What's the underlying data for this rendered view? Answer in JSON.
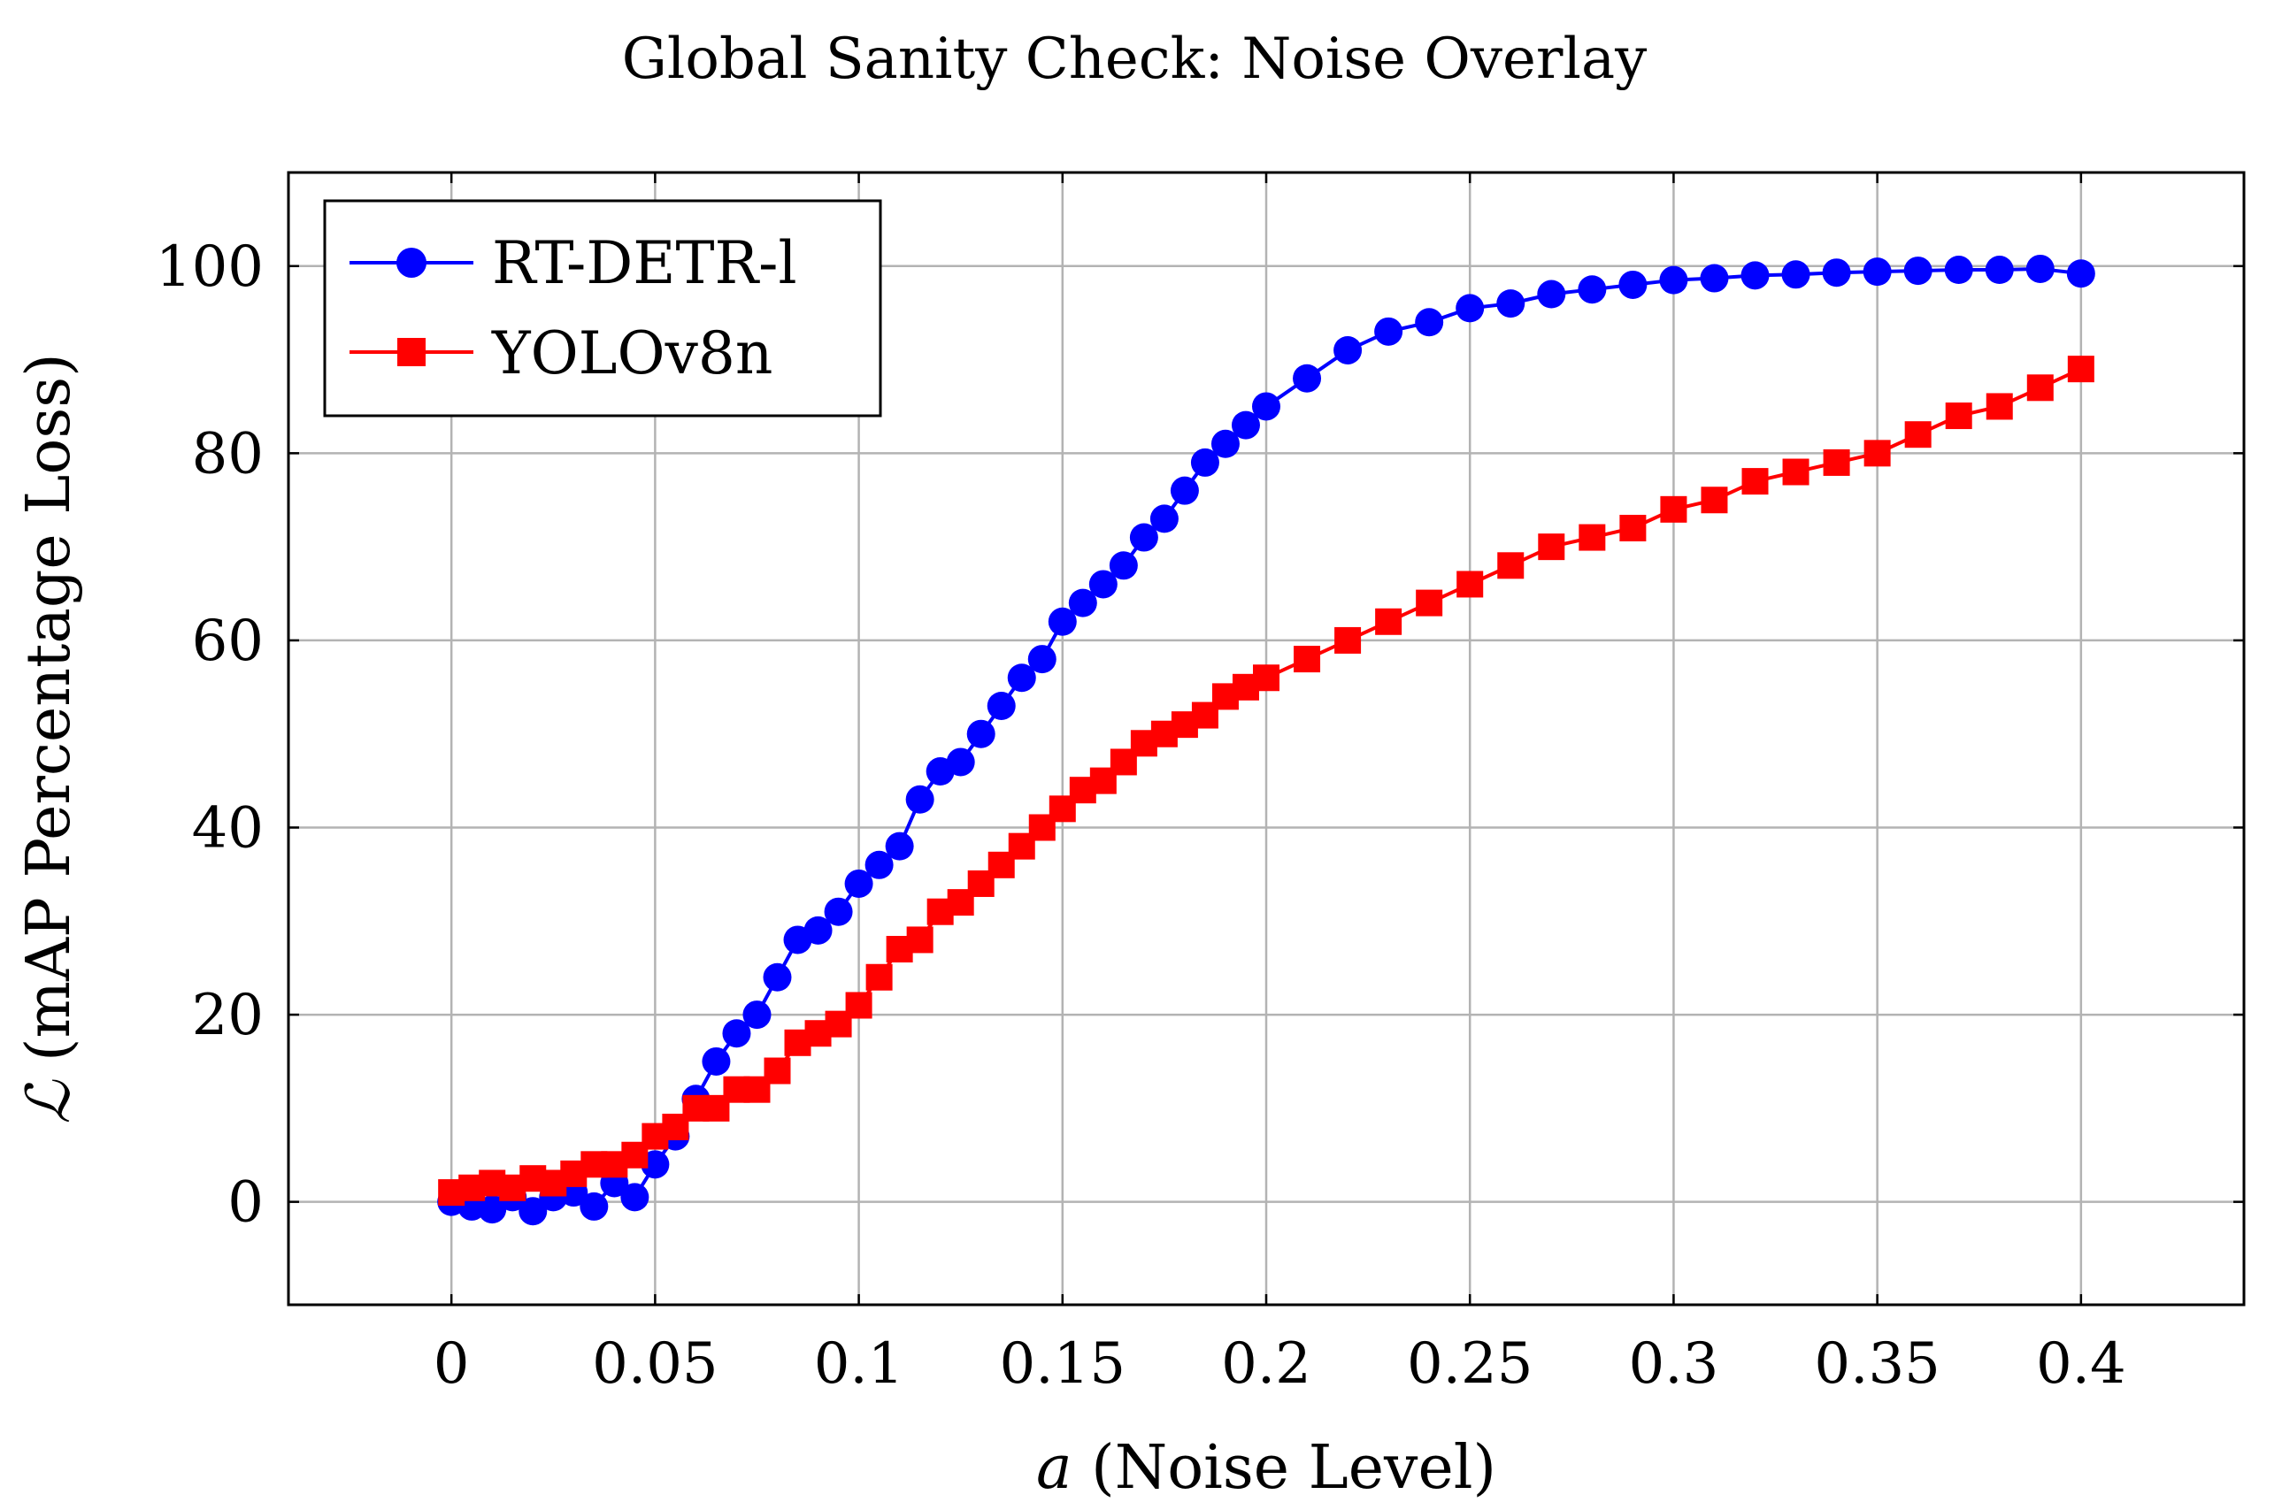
{
  "chart_data": {
    "type": "line",
    "title": "Global Sanity Check: Noise Overlay",
    "xlabel_var": "a",
    "xlabel_rest": " (Noise Level)",
    "ylabel_var": "ℒ",
    "ylabel_rest": " (mAP Percentage Loss)",
    "xlim": [
      -0.04,
      0.44
    ],
    "ylim": [
      -11,
      110
    ],
    "xticks": [
      0,
      0.05,
      0.1,
      0.15,
      0.2,
      0.25,
      0.3,
      0.35,
      0.4
    ],
    "xtick_labels": [
      "0",
      "0.05",
      "0.1",
      "0.15",
      "0.2",
      "0.25",
      "0.3",
      "0.35",
      "0.4"
    ],
    "yticks": [
      0,
      20,
      40,
      60,
      80,
      100
    ],
    "ytick_labels": [
      "0",
      "20",
      "40",
      "60",
      "80",
      "100"
    ],
    "grid": true,
    "legend": "top-left",
    "series": [
      {
        "name": "RT-DETR-l",
        "color": "#0000ff",
        "marker": "circle",
        "x": [
          0,
          0.005,
          0.01,
          0.015,
          0.02,
          0.025,
          0.03,
          0.035,
          0.04,
          0.045,
          0.05,
          0.055,
          0.06,
          0.065,
          0.07,
          0.075,
          0.08,
          0.085,
          0.09,
          0.095,
          0.1,
          0.105,
          0.11,
          0.115,
          0.12,
          0.125,
          0.13,
          0.135,
          0.14,
          0.145,
          0.15,
          0.155,
          0.16,
          0.165,
          0.17,
          0.175,
          0.18,
          0.185,
          0.19,
          0.195,
          0.2,
          0.21,
          0.22,
          0.23,
          0.24,
          0.25,
          0.26,
          0.27,
          0.28,
          0.29,
          0.3,
          0.31,
          0.32,
          0.33,
          0.34,
          0.35,
          0.36,
          0.37,
          0.38,
          0.39,
          0.4
        ],
        "y": [
          0,
          -0.5,
          -0.8,
          0.5,
          -1,
          0.5,
          1,
          -0.5,
          2,
          0.5,
          4,
          7,
          11,
          15,
          18,
          20,
          24,
          28,
          29,
          31,
          34,
          36,
          38,
          43,
          46,
          47,
          50,
          53,
          56,
          58,
          62,
          64,
          66,
          68,
          71,
          73,
          76,
          79,
          81,
          83,
          85,
          88,
          91,
          93,
          94,
          95.5,
          96,
          97,
          97.5,
          98,
          98.5,
          98.7,
          99,
          99.1,
          99.3,
          99.4,
          99.5,
          99.6,
          99.6,
          99.7,
          99.2
        ]
      },
      {
        "name": "YOLOv8n",
        "color": "#ff0000",
        "marker": "square",
        "x": [
          0,
          0.005,
          0.01,
          0.015,
          0.02,
          0.025,
          0.03,
          0.035,
          0.04,
          0.045,
          0.05,
          0.055,
          0.06,
          0.065,
          0.07,
          0.075,
          0.08,
          0.085,
          0.09,
          0.095,
          0.1,
          0.105,
          0.11,
          0.115,
          0.12,
          0.125,
          0.13,
          0.135,
          0.14,
          0.145,
          0.15,
          0.155,
          0.16,
          0.165,
          0.17,
          0.175,
          0.18,
          0.185,
          0.19,
          0.195,
          0.2,
          0.21,
          0.22,
          0.23,
          0.24,
          0.25,
          0.26,
          0.27,
          0.28,
          0.29,
          0.3,
          0.31,
          0.32,
          0.33,
          0.34,
          0.35,
          0.36,
          0.37,
          0.38,
          0.39,
          0.4
        ],
        "y": [
          1,
          1.5,
          2,
          1.5,
          2.5,
          2,
          3,
          4,
          4,
          5,
          7,
          8,
          10,
          10,
          12,
          12,
          14,
          17,
          18,
          19,
          21,
          24,
          27,
          28,
          31,
          32,
          34,
          36,
          38,
          40,
          42,
          44,
          45,
          47,
          49,
          50,
          51,
          52,
          54,
          55,
          56,
          58,
          60,
          62,
          64,
          66,
          68,
          70,
          71,
          72,
          74,
          75,
          77,
          78,
          79,
          80,
          82,
          84,
          85,
          87,
          89
        ]
      }
    ]
  }
}
